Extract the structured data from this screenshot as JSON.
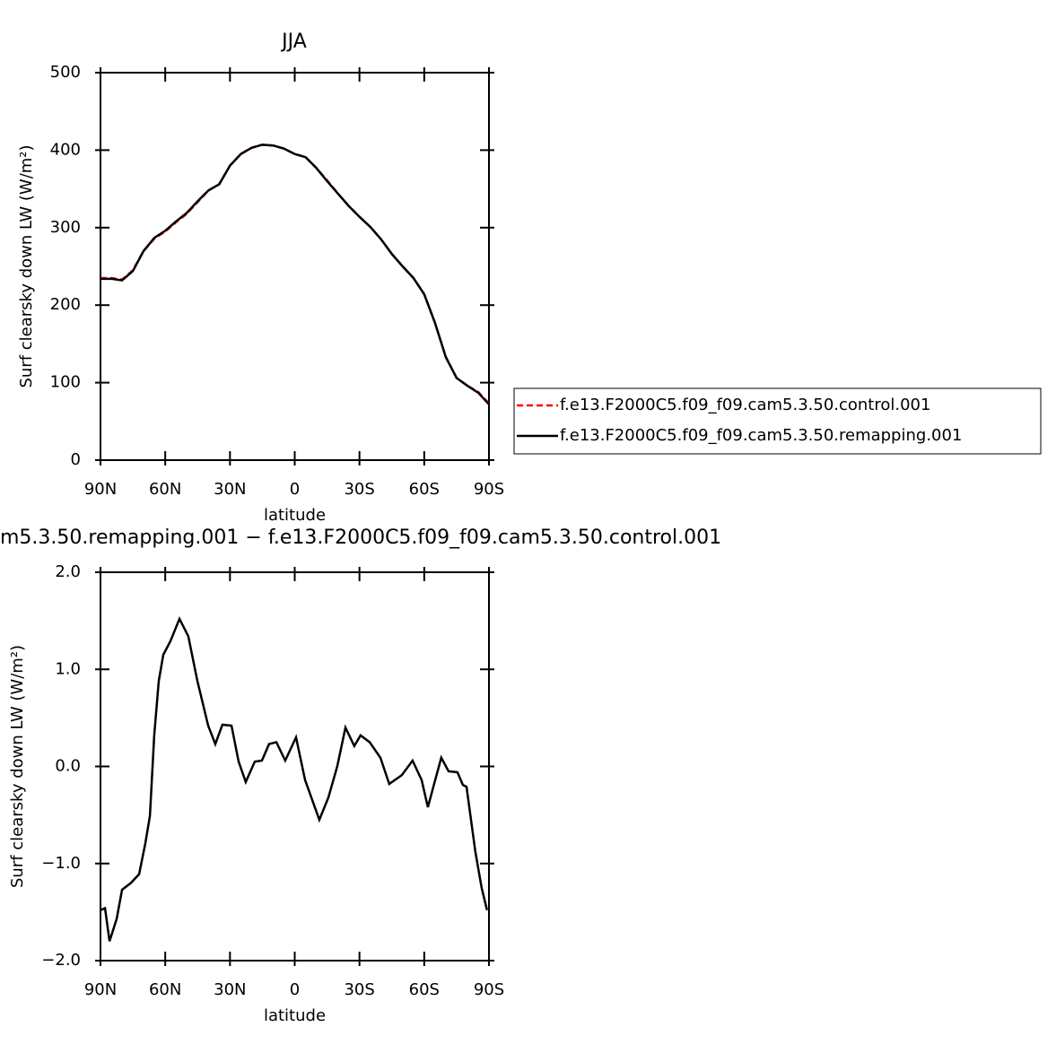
{
  "chart_data": [
    {
      "type": "line",
      "title": "JJA",
      "xlabel": "latitude",
      "ylabel": "Surf clearsky down LW (W/m²)",
      "x": [
        90,
        85,
        80,
        75,
        70,
        65,
        60,
        55,
        50,
        45,
        40,
        35,
        30,
        25,
        20,
        15,
        10,
        5,
        0,
        -5,
        -10,
        -15,
        -20,
        -25,
        -30,
        -35,
        -40,
        -45,
        -50,
        -55,
        -60,
        -65,
        -70,
        -75,
        -80,
        -85,
        -90
      ],
      "series": [
        {
          "name": "f.e13.F2000C5.f09_f09.cam5.3.50.control.001",
          "color": "#ff0000",
          "linestyle": "dashed",
          "values": [
            235,
            235,
            233,
            245,
            270,
            286,
            295,
            307,
            318,
            333,
            348,
            356,
            380,
            395,
            403,
            407,
            406,
            402,
            395,
            391,
            377,
            361,
            344,
            328,
            314,
            301,
            285,
            266,
            250,
            235,
            214,
            177,
            133,
            106,
            96,
            88,
            73
          ]
        },
        {
          "name": "f.e13.F2000C5.f09_f09.cam5.3.50.remapping.001",
          "color": "#000000",
          "linestyle": "solid",
          "values": [
            234,
            234,
            232,
            244,
            270,
            287,
            296,
            308,
            319,
            334,
            348,
            356,
            380,
            395,
            403,
            407,
            406,
            402,
            395,
            391,
            377,
            360,
            344,
            328,
            314,
            301,
            285,
            266,
            250,
            235,
            214,
            177,
            133,
            106,
            96,
            87,
            72
          ]
        }
      ],
      "xlim": [
        90,
        -90
      ],
      "ylim": [
        0,
        500
      ],
      "xticks": [
        {
          "value": 90,
          "label": "90N"
        },
        {
          "value": 60,
          "label": "60N"
        },
        {
          "value": 30,
          "label": "30N"
        },
        0,
        {
          "value": -30,
          "label": "30S"
        },
        {
          "value": -60,
          "label": "60S"
        },
        {
          "value": -90,
          "label": "90S"
        }
      ],
      "yticks": [
        0,
        100,
        200,
        300,
        400,
        500
      ],
      "legend": "right"
    },
    {
      "type": "line",
      "title": "m5.3.50.remapping.001 − f.e13.F2000C5.f09_f09.cam5.3.50.control.001",
      "xlabel": "latitude",
      "ylabel": "Surf clearsky down LW (W/m²)",
      "x": [
        90,
        87.9,
        85.8,
        82.5,
        80,
        75.9,
        72.1,
        69.2,
        67.1,
        65.1,
        63,
        60.9,
        57.6,
        53.4,
        49.3,
        45.1,
        40.1,
        36.8,
        33.5,
        29.3,
        26,
        22.7,
        18.5,
        15.2,
        11.9,
        8.5,
        4.4,
        -0.6,
        -4.8,
        -11.4,
        -15.6,
        -19.7,
        -23.5,
        -27.6,
        -30.5,
        -34.7,
        -39.7,
        -43.8,
        -49.6,
        -54.6,
        -58.8,
        -61.7,
        -64.6,
        -67.9,
        -71.3,
        -75.4,
        -77.9,
        -79.6,
        -83.7,
        -86.6,
        -89.1
      ],
      "series": [
        {
          "color": "#000000",
          "linestyle": "solid",
          "values": [
            -1.48,
            -1.46,
            -1.8,
            -1.57,
            -1.27,
            -1.2,
            -1.11,
            -0.79,
            -0.51,
            0.32,
            0.88,
            1.15,
            1.29,
            1.52,
            1.34,
            0.88,
            0.42,
            0.23,
            0.43,
            0.42,
            0.05,
            -0.16,
            0.05,
            0.06,
            0.23,
            0.25,
            0.06,
            0.3,
            -0.14,
            -0.55,
            -0.32,
            0,
            0.4,
            0.21,
            0.32,
            0.25,
            0.09,
            -0.18,
            -0.09,
            0.06,
            -0.14,
            -0.42,
            -0.18,
            0.09,
            -0.05,
            -0.06,
            -0.19,
            -0.21,
            -0.88,
            -1.25,
            -1.48
          ]
        }
      ],
      "xlim": [
        90,
        -90
      ],
      "ylim": [
        -2,
        2
      ],
      "xticks": [
        {
          "value": 90,
          "label": "90N"
        },
        {
          "value": 60,
          "label": "60N"
        },
        {
          "value": 30,
          "label": "30N"
        },
        0,
        {
          "value": -30,
          "label": "30S"
        },
        {
          "value": -60,
          "label": "60S"
        },
        {
          "value": -90,
          "label": "90S"
        }
      ],
      "yticks": [
        {
          "value": -2,
          "label": "−2.0"
        },
        {
          "value": -1,
          "label": "−1.0"
        },
        {
          "value": 0,
          "label": "0.0"
        },
        {
          "value": 1,
          "label": "1.0"
        },
        {
          "value": 2,
          "label": "2.0"
        }
      ]
    }
  ]
}
